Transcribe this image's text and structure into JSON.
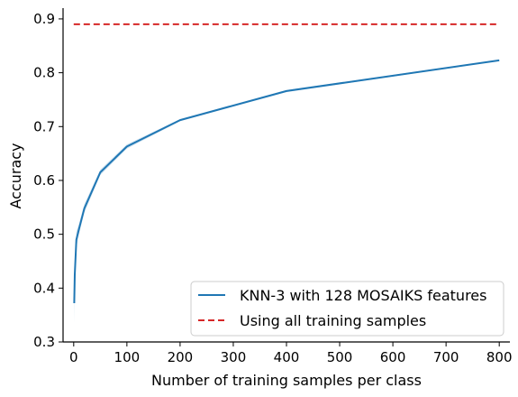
{
  "chart_data": {
    "type": "line",
    "xlabel": "Number of training samples per class",
    "ylabel": "Accuracy",
    "xlim": [
      -20,
      820
    ],
    "ylim": [
      0.3,
      0.92
    ],
    "xticks": [
      0,
      100,
      200,
      300,
      400,
      500,
      600,
      700,
      800
    ],
    "xtick_labels": [
      "0",
      "100",
      "200",
      "300",
      "400",
      "500",
      "600",
      "700",
      "800"
    ],
    "yticks": [
      0.3,
      0.4,
      0.5,
      0.6,
      0.7,
      0.8,
      0.9
    ],
    "ytick_labels": [
      "0.3",
      "0.4",
      "0.5",
      "0.6",
      "0.7",
      "0.8",
      "0.9"
    ],
    "grid": false,
    "legend_position": "bottom-right",
    "series": [
      {
        "name": "KNN-3 with 128 MOSAIKS features",
        "style": "solid",
        "color": "#1f77b4",
        "band_color": "#1f77b4",
        "x": [
          1,
          2,
          5,
          10,
          20,
          50,
          100,
          200,
          400,
          800
        ],
        "y": [
          0.372,
          0.425,
          0.49,
          0.51,
          0.548,
          0.615,
          0.663,
          0.712,
          0.766,
          0.823
        ],
        "lower": [
          0.335,
          0.405,
          0.475,
          0.5,
          0.54,
          0.61,
          0.659,
          0.71,
          0.764,
          0.822
        ],
        "upper": [
          0.39,
          0.44,
          0.505,
          0.52,
          0.556,
          0.62,
          0.667,
          0.714,
          0.768,
          0.824
        ]
      },
      {
        "name": "Using all training samples",
        "style": "dashed",
        "color": "#d62728",
        "x": [
          0,
          800
        ],
        "y": [
          0.89,
          0.89
        ]
      }
    ]
  }
}
